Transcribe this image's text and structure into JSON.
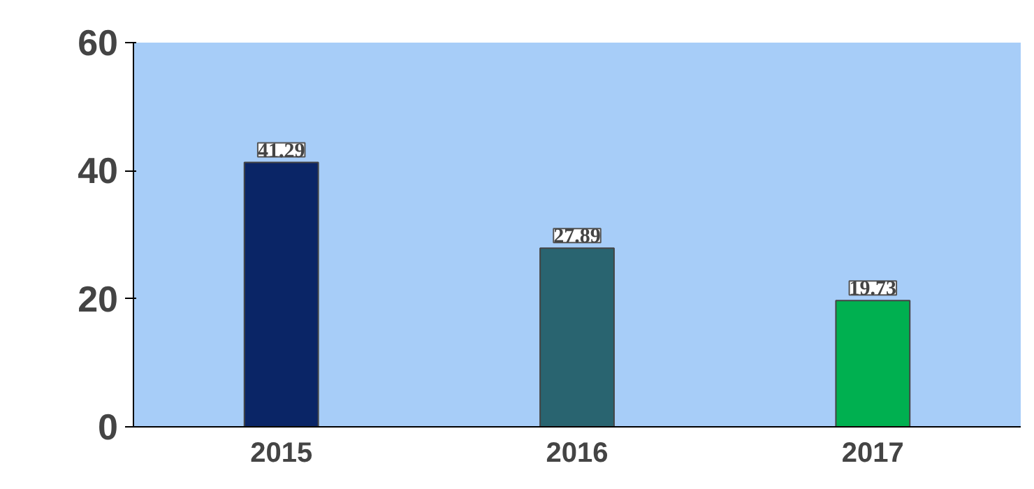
{
  "chart_data": {
    "type": "bar",
    "categories": [
      "2015",
      "2016",
      "2017"
    ],
    "values": [
      41.29,
      27.89,
      19.73
    ],
    "colors": [
      "#0a2566",
      "#296470",
      "#00b050"
    ],
    "ylim": [
      0,
      60
    ],
    "yticks": [
      0,
      20,
      40,
      60
    ],
    "grid": false,
    "data_labels": true
  }
}
